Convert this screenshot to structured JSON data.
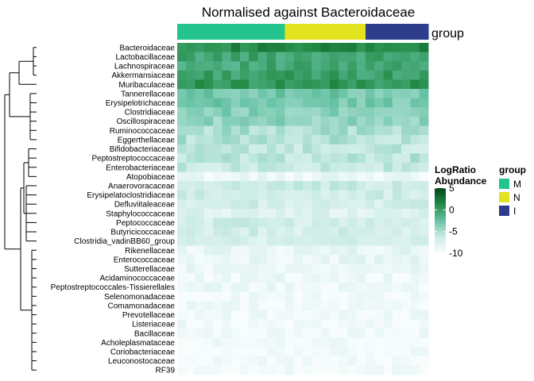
{
  "chart_data": {
    "type": "heatmap",
    "title": "Normalised against Bacteroidaceae",
    "annotation_label": "group",
    "rows": [
      "Bacteroidaceae",
      "Lactobacillaceae",
      "Lachnospiraceae",
      "Akkermansiaceae",
      "Muribaculaceae",
      "Tannerellaceae",
      "Erysipelotrichaceae",
      "Clostridiaceae",
      "Oscillospiraceae",
      "Ruminococcaceae",
      "Eggerthellaceae",
      "Bifidobacteriaceae",
      "Peptostreptococcaceae",
      "Enterobacteriaceae",
      "Atopobiaceae",
      "Anaerovoracaceae",
      "Erysipelatoclostridiaceae",
      "Defluviitaleaceae",
      "Staphylococcaceae",
      "Peptococcaceae",
      "Butyricicoccaceae",
      "Clostridia_vadinBB60_group",
      "Rikenellaceae",
      "Enterococcaceae",
      "Sutterellaceae",
      "Acidaminococcaceae",
      "Peptostreptococcales-Tissierellales",
      "Selenomonadaceae",
      "Comamonadaceae",
      "Prevotellaceae",
      "Listeriaceae",
      "Bacillaceae",
      "Acholeplasmataceae",
      "Coriobacteriaceae",
      "Leuconostocaceae",
      "RF39"
    ],
    "column_groups": [
      "M",
      "M",
      "M",
      "M",
      "M",
      "M",
      "M",
      "M",
      "M",
      "M",
      "M",
      "M",
      "N",
      "N",
      "N",
      "N",
      "N",
      "N",
      "N",
      "N",
      "N",
      "I",
      "I",
      "I",
      "I",
      "I",
      "I",
      "I"
    ],
    "row_typical_values": [
      1.2,
      -0.5,
      -0.8,
      -0.2,
      0.5,
      -3.0,
      -3.2,
      -3.6,
      -4.0,
      -5.0,
      -5.2,
      -6.0,
      -5.7,
      -6.2,
      -9.0,
      -6.6,
      -6.8,
      -7.0,
      -7.8,
      -6.8,
      -7.0,
      -7.2,
      -8.6,
      -8.8,
      -9.0,
      -9.2,
      -9.3,
      -9.6,
      -9.5,
      -9.6,
      -9.7,
      -9.7,
      -9.8,
      -9.8,
      -9.8,
      -9.9
    ],
    "group_colors": {
      "M": "#23c48e",
      "N": "#e2e21f",
      "I": "#2e3c8c"
    },
    "scale": {
      "title": [
        "LogRatio",
        "Abundance"
      ],
      "ticks": [
        "5",
        "0",
        "-5",
        "-10"
      ],
      "min": -10,
      "max": 5,
      "colors": [
        "#f7fcfd",
        "#ccece6",
        "#66c2a4",
        "#238b45",
        "#00441b"
      ]
    },
    "legend": {
      "title": "group",
      "items": [
        {
          "label": "M",
          "color": "#23c48e"
        },
        {
          "label": "N",
          "color": "#e2e21f"
        },
        {
          "label": "I",
          "color": "#2e3c8c"
        }
      ]
    }
  }
}
